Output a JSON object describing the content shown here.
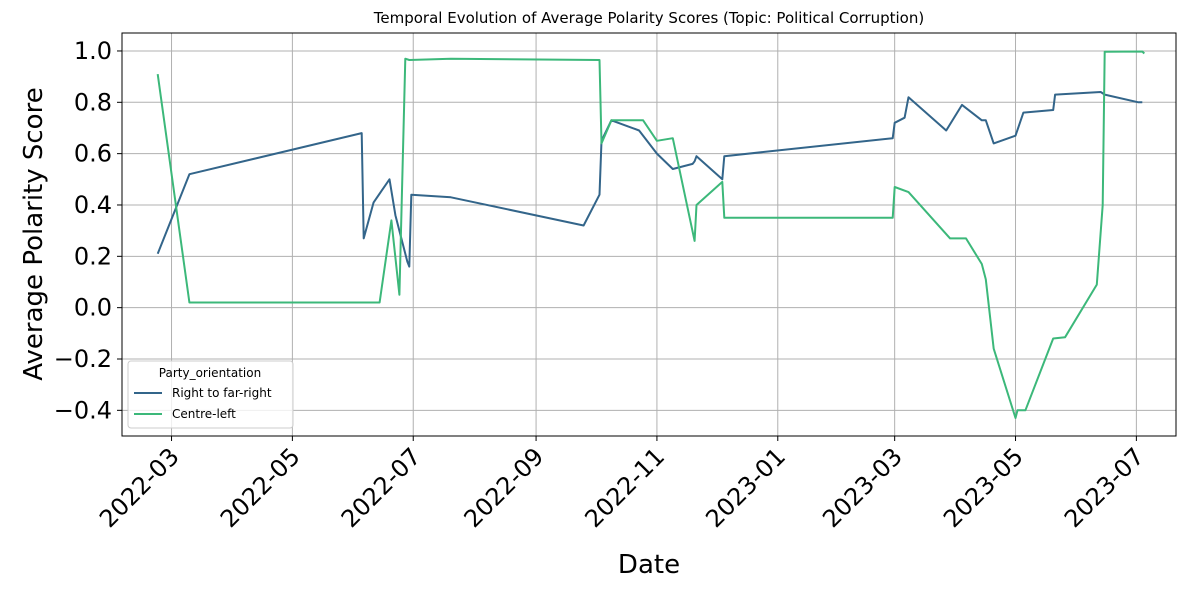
{
  "chart_data": {
    "type": "line",
    "title": "Temporal Evolution of Average Polarity Scores (Topic: Political Corruption)",
    "xlabel": "Date",
    "ylabel": "Average Polarity Score",
    "x_tick_labels": [
      "2022-03",
      "2022-05",
      "2022-07",
      "2022-09",
      "2022-11",
      "2023-01",
      "2023-03",
      "2023-05",
      "2023-07"
    ],
    "x_tick_dates": [
      "2022-03-01",
      "2022-05-01",
      "2022-07-01",
      "2022-09-01",
      "2022-11-01",
      "2023-01-01",
      "2023-03-01",
      "2023-05-01",
      "2023-07-01"
    ],
    "xlim": [
      "2022-02-04",
      "2023-07-21"
    ],
    "y_ticks": [
      -0.4,
      -0.2,
      0.0,
      0.2,
      0.4,
      0.6,
      0.8,
      1.0
    ],
    "y_tick_labels": [
      "−0.4",
      "−0.2",
      "0.0",
      "0.2",
      "0.4",
      "0.6",
      "0.8",
      "1.0"
    ],
    "ylim": [
      -0.5,
      1.07
    ],
    "grid": true,
    "legend": {
      "title": "Party_orientation",
      "position": "lower-left"
    },
    "series": [
      {
        "name": "Right to far-right",
        "color": "#33658a",
        "points": [
          [
            "2022-02-22",
            0.21
          ],
          [
            "2022-03-10",
            0.52
          ],
          [
            "2022-06-05",
            0.68
          ],
          [
            "2022-06-06",
            0.27
          ],
          [
            "2022-06-11",
            0.41
          ],
          [
            "2022-06-19",
            0.5
          ],
          [
            "2022-06-22",
            0.36
          ],
          [
            "2022-06-28",
            0.18
          ],
          [
            "2022-06-29",
            0.16
          ],
          [
            "2022-06-30",
            0.44
          ],
          [
            "2022-07-20",
            0.43
          ],
          [
            "2022-09-25",
            0.32
          ],
          [
            "2022-10-03",
            0.44
          ],
          [
            "2022-10-04",
            0.65
          ],
          [
            "2022-10-09",
            0.73
          ],
          [
            "2022-10-23",
            0.69
          ],
          [
            "2022-11-01",
            0.6
          ],
          [
            "2022-11-09",
            0.54
          ],
          [
            "2022-11-19",
            0.56
          ],
          [
            "2022-11-20",
            0.57
          ],
          [
            "2022-11-21",
            0.59
          ],
          [
            "2022-12-04",
            0.5
          ],
          [
            "2022-12-05",
            0.59
          ],
          [
            "2023-02-28",
            0.66
          ],
          [
            "2023-03-01",
            0.72
          ],
          [
            "2023-03-06",
            0.74
          ],
          [
            "2023-03-08",
            0.82
          ],
          [
            "2023-03-27",
            0.69
          ],
          [
            "2023-04-04",
            0.79
          ],
          [
            "2023-04-14",
            0.73
          ],
          [
            "2023-04-16",
            0.73
          ],
          [
            "2023-04-20",
            0.64
          ],
          [
            "2023-05-01",
            0.67
          ],
          [
            "2023-05-05",
            0.76
          ],
          [
            "2023-05-20",
            0.77
          ],
          [
            "2023-05-21",
            0.83
          ],
          [
            "2023-06-13",
            0.84
          ],
          [
            "2023-06-15",
            0.83
          ],
          [
            "2023-07-02",
            0.8
          ],
          [
            "2023-07-04",
            0.8
          ]
        ]
      },
      {
        "name": "Centre-left",
        "color": "#3cb87a",
        "points": [
          [
            "2022-02-22",
            0.91
          ],
          [
            "2022-03-10",
            0.02
          ],
          [
            "2022-06-14",
            0.02
          ],
          [
            "2022-06-20",
            0.34
          ],
          [
            "2022-06-24",
            0.05
          ],
          [
            "2022-06-27",
            0.97
          ],
          [
            "2022-06-29",
            0.965
          ],
          [
            "2022-07-20",
            0.97
          ],
          [
            "2022-10-03",
            0.965
          ],
          [
            "2022-10-04",
            0.64
          ],
          [
            "2022-10-09",
            0.73
          ],
          [
            "2022-10-25",
            0.73
          ],
          [
            "2022-11-01",
            0.65
          ],
          [
            "2022-11-09",
            0.66
          ],
          [
            "2022-11-20",
            0.26
          ],
          [
            "2022-11-21",
            0.4
          ],
          [
            "2022-12-04",
            0.49
          ],
          [
            "2022-12-05",
            0.35
          ],
          [
            "2023-02-28",
            0.35
          ],
          [
            "2023-03-01",
            0.47
          ],
          [
            "2023-03-08",
            0.45
          ],
          [
            "2023-03-29",
            0.27
          ],
          [
            "2023-04-06",
            0.27
          ],
          [
            "2023-04-14",
            0.17
          ],
          [
            "2023-04-16",
            0.11
          ],
          [
            "2023-04-20",
            -0.16
          ],
          [
            "2023-05-01",
            -0.43
          ],
          [
            "2023-05-02",
            -0.4
          ],
          [
            "2023-05-06",
            -0.4
          ],
          [
            "2023-05-20",
            -0.12
          ],
          [
            "2023-05-26",
            -0.115
          ],
          [
            "2023-06-11",
            0.09
          ],
          [
            "2023-06-14",
            0.4
          ],
          [
            "2023-06-15",
            0.997
          ],
          [
            "2023-07-04",
            0.998
          ],
          [
            "2023-07-05",
            0.99
          ]
        ]
      }
    ]
  }
}
